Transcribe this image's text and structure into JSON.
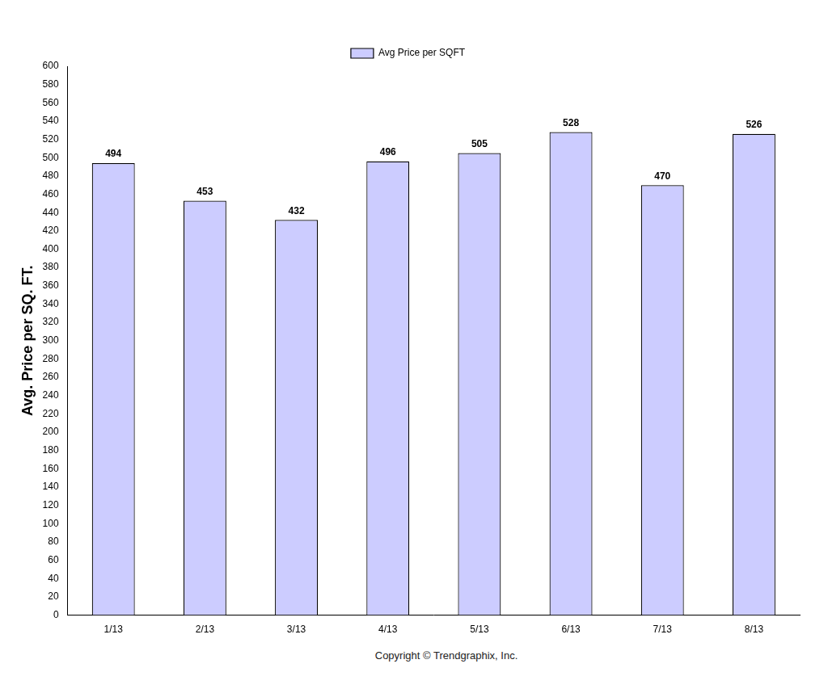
{
  "chart_data": {
    "type": "bar",
    "categories": [
      "1/13",
      "2/13",
      "3/13",
      "4/13",
      "5/13",
      "6/13",
      "7/13",
      "8/13"
    ],
    "series": [
      {
        "name": "Avg Price per SQFT",
        "color": "#ccccff",
        "values": [
          494,
          453,
          432,
          496,
          505,
          528,
          470,
          526
        ]
      }
    ],
    "y_label": "Avg. Price per SQ. FT.",
    "annotations": [
      "Copyright © Trendgraphix, Inc."
    ],
    "ylim": [
      0,
      600
    ],
    "yticks": [
      0,
      20,
      40,
      60,
      80,
      100,
      120,
      140,
      160,
      180,
      200,
      220,
      240,
      260,
      280,
      300,
      320,
      340,
      360,
      380,
      400,
      420,
      440,
      460,
      480,
      500,
      520,
      540,
      560,
      580,
      600
    ],
    "grid": false,
    "legend": "top",
    "data_labels": true
  }
}
